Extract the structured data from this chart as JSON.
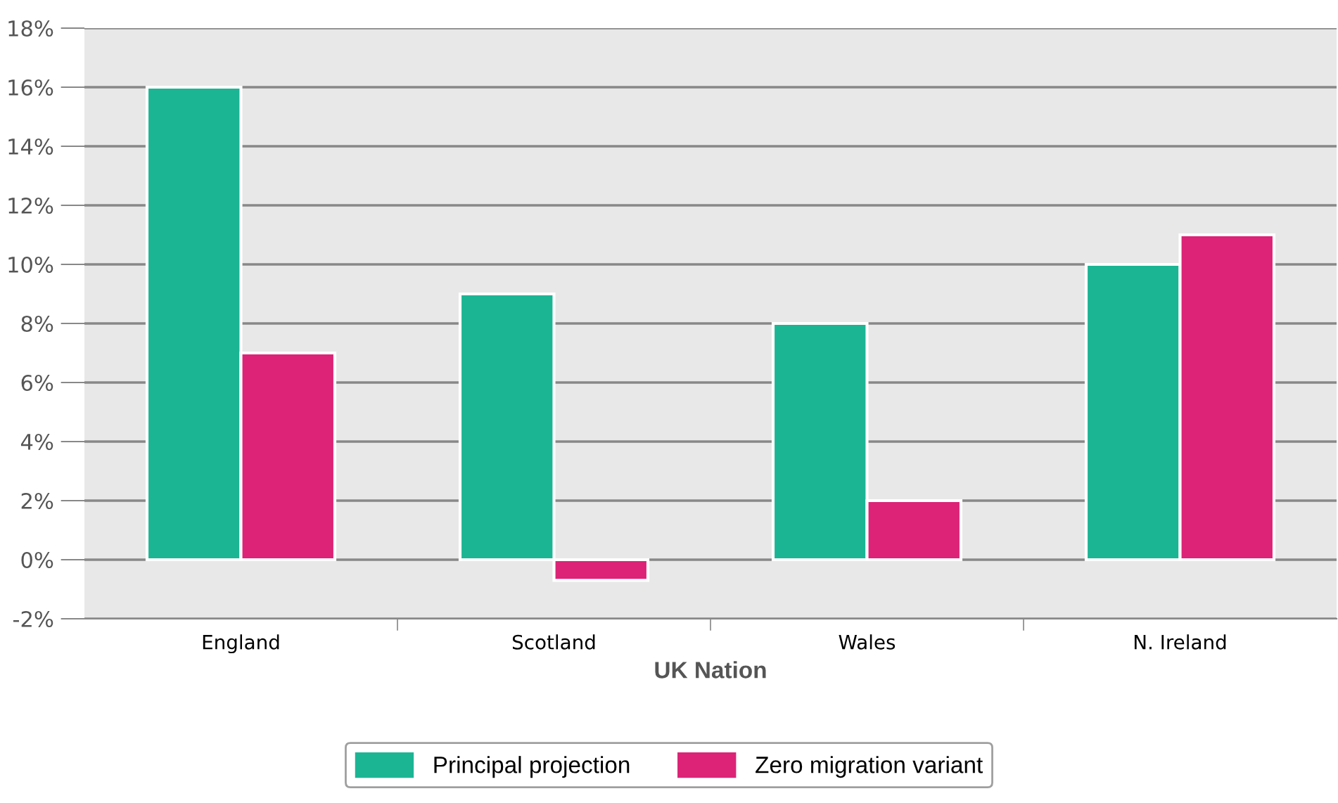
{
  "chart_data": {
    "type": "bar",
    "xlabel": "UK Nation",
    "categories": [
      "England",
      "Scotland",
      "Wales",
      "N. Ireland"
    ],
    "series": [
      {
        "name": "Principal projection",
        "color": "#1bb594",
        "values": [
          16,
          9,
          8,
          10
        ]
      },
      {
        "name": "Zero migration variant",
        "color": "#dc2377",
        "values": [
          7,
          -0.7,
          2,
          11
        ]
      }
    ],
    "ylim": [
      -2,
      18
    ],
    "yticks": [
      {
        "value": -2,
        "label": "-2%"
      },
      {
        "value": 0,
        "label": "0%"
      },
      {
        "value": 2,
        "label": "2%"
      },
      {
        "value": 4,
        "label": "4%"
      },
      {
        "value": 6,
        "label": "6%"
      },
      {
        "value": 8,
        "label": "8%"
      },
      {
        "value": 10,
        "label": "10%"
      },
      {
        "value": 12,
        "label": "12%"
      },
      {
        "value": 14,
        "label": "14%"
      },
      {
        "value": 16,
        "label": "16%"
      },
      {
        "value": 18,
        "label": "18%"
      }
    ],
    "grid": "y",
    "legend": "bottom"
  }
}
